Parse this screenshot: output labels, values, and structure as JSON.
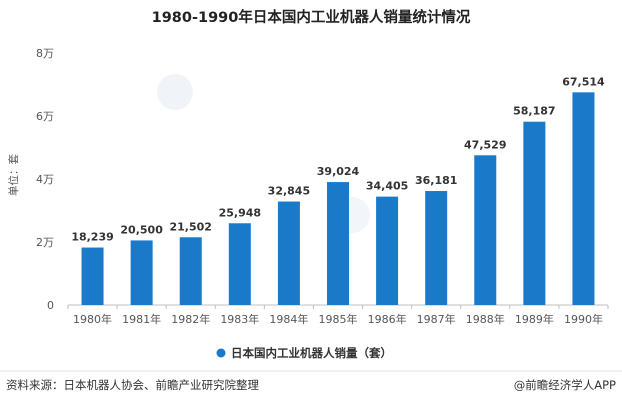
{
  "chart_data": {
    "type": "bar",
    "title": "1980-1990年日本国内工业机器人销量统计情况",
    "ylabel": "单位：套",
    "xlabel": "",
    "categories": [
      "1980年",
      "1981年",
      "1982年",
      "1983年",
      "1984年",
      "1985年",
      "1986年",
      "1987年",
      "1988年",
      "1989年",
      "1990年"
    ],
    "series": [
      {
        "name": "日本国内工业机器人销量（套）",
        "values": [
          18239,
          20500,
          21502,
          25948,
          32845,
          39024,
          34405,
          36181,
          47529,
          58187,
          67514
        ],
        "labels": [
          "18,239",
          "20,500",
          "21,502",
          "25,948",
          "32,845",
          "39,024",
          "34,405",
          "36,181",
          "47,529",
          "58,187",
          "67,514"
        ],
        "color": "#1a7ac9"
      }
    ],
    "ylim": [
      0,
      80000
    ],
    "yticks": [
      0,
      20000,
      40000,
      60000,
      80000
    ],
    "ytick_labels": [
      "0",
      "2万",
      "4万",
      "6万",
      "8万"
    ],
    "grid": false,
    "legend_position": "bottom"
  },
  "footer": {
    "source": "资料来源：日本机器人协会、前瞻产业研究院整理",
    "brand": "@前瞻经济学人APP"
  },
  "colors": {
    "bar": "#1a7ac9",
    "axis": "#bfbfbf"
  }
}
